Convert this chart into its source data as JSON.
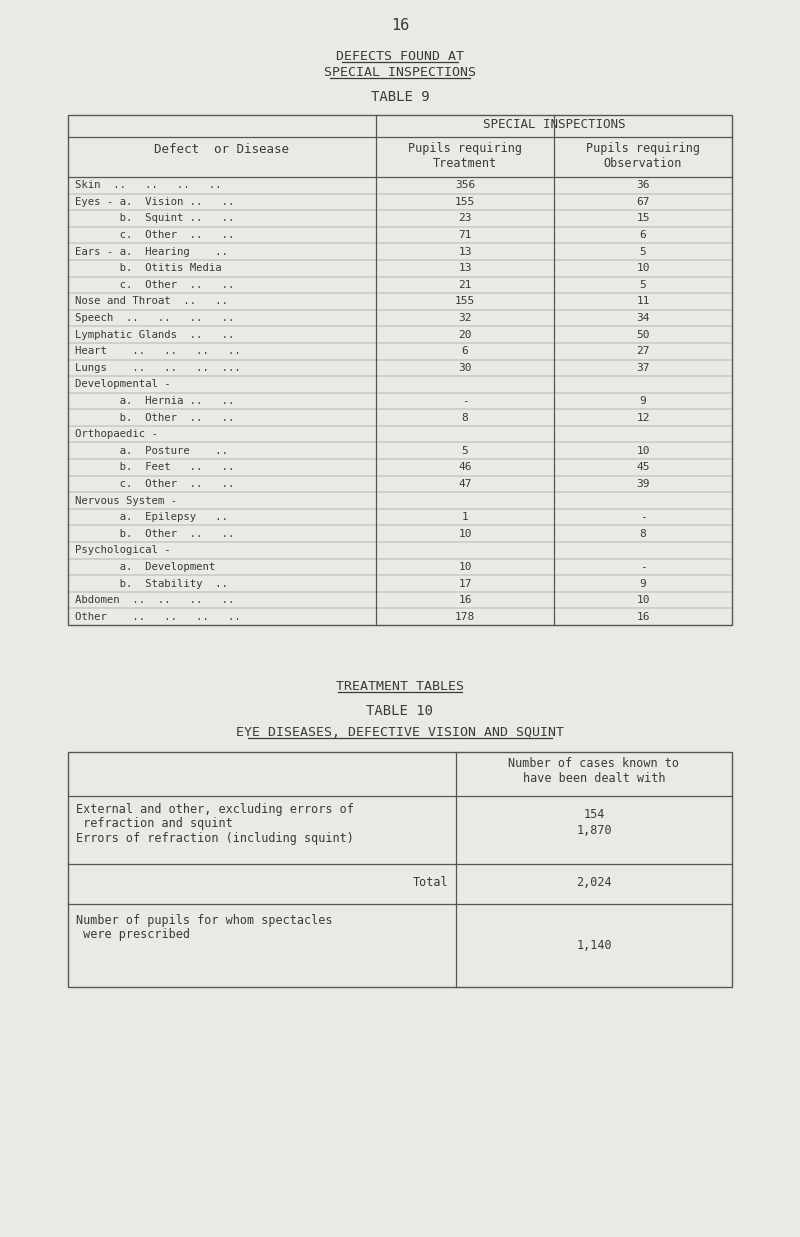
{
  "page_number": "16",
  "bg_color": "#e9e9e5",
  "title1": "DEFECTS FOUND AT",
  "title2": "SPECIAL INSPECTIONS",
  "table9_label": "TABLE 9",
  "col_header_main": "SPECIAL INSPECTIONS",
  "col_header1": "Pupils requiring\nTreatment",
  "col_header2": "Pupils requiring\nObservation",
  "row_header": "Defect  or Disease",
  "table9_rows": [
    {
      "label": "Skin  ..   ..   ..   ..",
      "treatment": "356",
      "observation": "36"
    },
    {
      "label": "Eyes - a.  Vision ..   ..",
      "treatment": "155",
      "observation": "67"
    },
    {
      "label": "       b.  Squint ..   ..",
      "treatment": "23",
      "observation": "15"
    },
    {
      "label": "       c.  Other  ..   ..",
      "treatment": "71",
      "observation": "6"
    },
    {
      "label": "Ears - a.  Hearing    ..",
      "treatment": "13",
      "observation": "5"
    },
    {
      "label": "       b.  Otitis Media",
      "treatment": "13",
      "observation": "10"
    },
    {
      "label": "       c.  Other  ..   ..",
      "treatment": "21",
      "observation": "5"
    },
    {
      "label": "Nose and Throat  ..   ..",
      "treatment": "155",
      "observation": "11"
    },
    {
      "label": "Speech  ..   ..   ..   ..",
      "treatment": "32",
      "observation": "34"
    },
    {
      "label": "Lymphatic Glands  ..   ..",
      "treatment": "20",
      "observation": "50"
    },
    {
      "label": "Heart    ..   ..   ..   ..",
      "treatment": "6",
      "observation": "27"
    },
    {
      "label": "Lungs    ..   ..   ..  ...",
      "treatment": "30",
      "observation": "37"
    },
    {
      "label": "Developmental -",
      "treatment": "",
      "observation": ""
    },
    {
      "label": "       a.  Hernia ..   ..",
      "treatment": "-",
      "observation": "9"
    },
    {
      "label": "       b.  Other  ..   ..",
      "treatment": "8",
      "observation": "12"
    },
    {
      "label": "Orthopaedic -",
      "treatment": "",
      "observation": ""
    },
    {
      "label": "       a.  Posture    ..",
      "treatment": "5",
      "observation": "10"
    },
    {
      "label": "       b.  Feet   ..   ..",
      "treatment": "46",
      "observation": "45"
    },
    {
      "label": "       c.  Other  ..   ..",
      "treatment": "47",
      "observation": "39"
    },
    {
      "label": "Nervous System -",
      "treatment": "",
      "observation": ""
    },
    {
      "label": "       a.  Epilepsy   ..",
      "treatment": "1",
      "observation": "-"
    },
    {
      "label": "       b.  Other  ..   ..",
      "treatment": "10",
      "observation": "8"
    },
    {
      "label": "Psychological -",
      "treatment": "",
      "observation": ""
    },
    {
      "label": "       a.  Development",
      "treatment": "10",
      "observation": "-"
    },
    {
      "label": "       b.  Stability  ..",
      "treatment": "17",
      "observation": "9"
    },
    {
      "label": "Abdomen  ..  ..   ..   ..",
      "treatment": "16",
      "observation": "10"
    },
    {
      "label": "Other    ..   ..   ..   ..",
      "treatment": "178",
      "observation": "16"
    }
  ],
  "treatment_tables_title": "TREATMENT TABLES",
  "table10_label": "TABLE 10",
  "table10_subtitle": "EYE DISEASES, DEFECTIVE VISION AND SQUINT",
  "table10_col_header": "Number of cases known to\nhave been dealt with",
  "t10_ext_line1": "External and other, excluding errors of",
  "t10_ext_line2": " refraction and squint",
  "t10_ext_line3": "Errors of refraction (including squint)",
  "t10_ext_val1": "154",
  "t10_ext_val2": "1,870",
  "t10_total_label": "Total",
  "t10_total_val": "2,024",
  "t10_spec_line1": "Number of pupils for whom spectacles",
  "t10_spec_line2": " were prescribed",
  "t10_spec_val": "1,140",
  "text_color": "#3a3a3a",
  "line_color": "#555555"
}
